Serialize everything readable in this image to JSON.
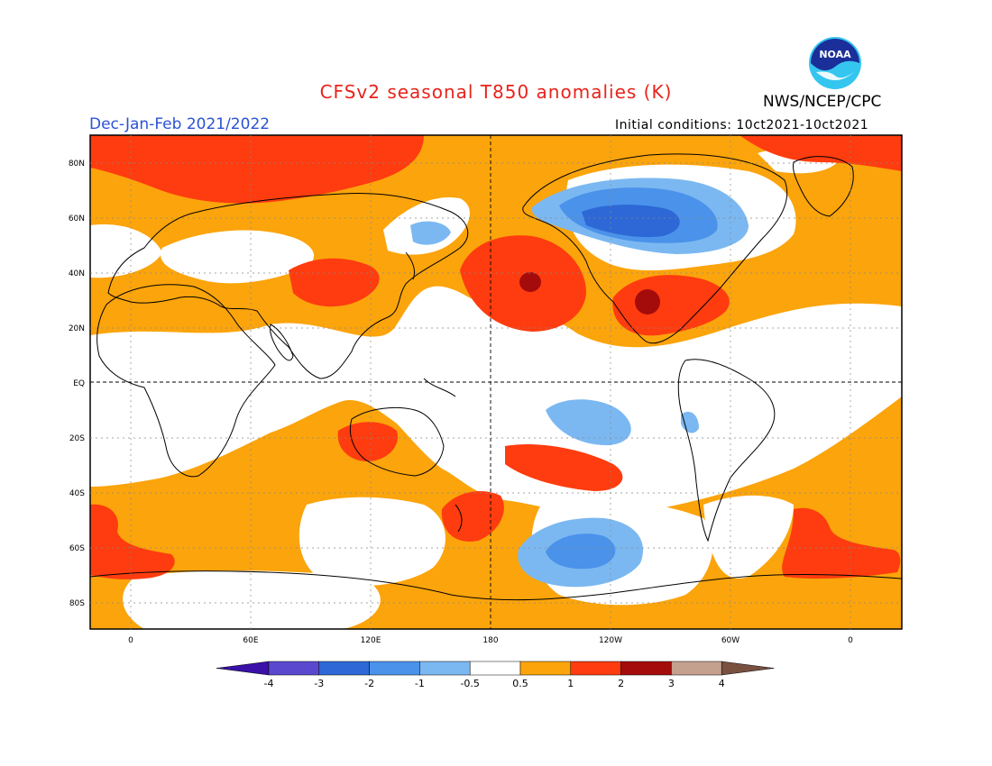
{
  "header": {
    "title": "CFSv2 seasonal T850 anomalies (K)",
    "agency": "NWS/NCEP/CPC",
    "season": "Dec-Jan-Feb 2021/2022",
    "initial_conditions": "Initial conditions: 10ct2021-10ct2021",
    "logo_text": "NOAA"
  },
  "map": {
    "lat_labels": [
      "80N",
      "60N",
      "40N",
      "20N",
      "EQ",
      "20S",
      "40S",
      "60S",
      "80S"
    ],
    "lon_labels": [
      "0",
      "60E",
      "120E",
      "180",
      "120W",
      "60W",
      "0"
    ]
  },
  "colorbar": {
    "labels": [
      "-4",
      "-3",
      "-2",
      "-1",
      "-0.5",
      "0.5",
      "1",
      "2",
      "3",
      "4"
    ],
    "colors": [
      "#3a10a8",
      "#5a48cf",
      "#2d68d6",
      "#4a92ea",
      "#7bb8f1",
      "#ffffff",
      "#fba40b",
      "#fe3c0f",
      "#a40c0c",
      "#c4a08f",
      "#7a5040"
    ]
  }
}
